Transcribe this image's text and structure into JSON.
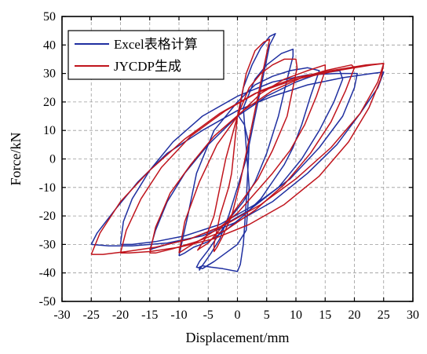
{
  "chart_data": {
    "type": "line",
    "title": "",
    "xlabel": "Displacement/mm",
    "ylabel": "Force/kN",
    "xlim": [
      -30,
      30
    ],
    "ylim": [
      -50,
      50
    ],
    "xticks": [
      -30,
      -25,
      -20,
      -15,
      -10,
      -5,
      0,
      5,
      10,
      15,
      20,
      25,
      30
    ],
    "yticks": [
      -50,
      -40,
      -30,
      -20,
      -10,
      0,
      10,
      20,
      30,
      40,
      50
    ],
    "grid": true,
    "legend_position": "top-left",
    "series": [
      {
        "name": "Excel表格计算",
        "color": "#1f2fa0",
        "loops": [
          {
            "x": [
              0.2,
              1,
              2.5,
              4,
              5.5,
              6.5,
              5.5,
              3.5,
              1.5,
              0,
              -1.5,
              -3,
              -4.5,
              -5.5,
              -6.2,
              -6.5,
              -6.5,
              -6,
              -4.5,
              -2.5,
              0,
              0.5,
              1,
              1.5,
              2,
              1.2,
              0.2
            ],
            "y": [
              15,
              25,
              33,
              39,
              43,
              44,
              40,
              20,
              0,
              -10,
              -20,
              -28,
              -33,
              -36,
              -38,
              -39,
              -38,
              -37.5,
              -38,
              -38.5,
              -39.5,
              -37,
              -30,
              -15,
              5,
              12,
              15
            ]
          },
          {
            "x": [
              1,
              3,
              5,
              7.5,
              9.5,
              9.5,
              8.5,
              7,
              5,
              3,
              1,
              -1,
              -3,
              -5,
              -6.5,
              -7,
              -6,
              -4,
              -2,
              0,
              1.5,
              2,
              1
            ],
            "y": [
              18,
              28,
              33,
              37,
              38.5,
              36,
              28,
              15,
              2,
              -8,
              -15,
              -20,
              -26,
              -32,
              -36,
              -38,
              -38.5,
              -36,
              -33,
              -30,
              -25,
              -10,
              18
            ]
          },
          {
            "x": [
              -10,
              -8.5,
              -7,
              -4,
              0,
              3,
              6,
              9,
              12,
              14,
              12.5,
              11,
              9.5,
              8,
              6,
              4,
              1,
              -2,
              -5,
              -7.5,
              -9,
              -10,
              -10
            ],
            "y": [
              -34,
              -20,
              -5,
              10,
              20,
              26,
              29,
              31,
              32,
              31,
              22,
              12,
              4,
              -2,
              -8,
              -14,
              -20,
              -25,
              -29,
              -31,
              -33,
              -34,
              -34
            ]
          },
          {
            "x": [
              -15,
              -14,
              -12,
              -9,
              -5,
              0,
              5,
              10,
              14,
              17.5,
              18,
              16.5,
              14,
              11,
              7,
              2,
              -3,
              -8,
              -12,
              -14.5,
              -15
            ],
            "y": [
              -32,
              -25,
              -15,
              -5,
              5,
              15,
              22,
              27,
              30,
              31,
              28,
              20,
              10,
              0,
              -10,
              -18,
              -24,
              -28,
              -30,
              -31.5,
              -32
            ]
          },
          {
            "x": [
              -20,
              -19.5,
              -18,
              -15,
              -11,
              -6,
              0,
              6,
              12,
              17,
              20.5,
              20,
              18,
              14,
              9,
              3,
              -3,
              -9,
              -14,
              -18,
              -20
            ],
            "y": [
              -30,
              -22,
              -14,
              -4,
              6,
              15,
              22,
              27,
              29.5,
              30,
              30,
              25,
              15,
              4,
              -7,
              -16,
              -23,
              -27,
              -29,
              -30,
              -30
            ]
          },
          {
            "x": [
              -25,
              -24,
              -21,
              -17,
              -12,
              -6,
              0,
              6,
              12,
              18,
              23,
              25,
              24,
              21,
              17,
              12,
              6,
              0,
              -6,
              -12,
              -18,
              -22,
              -25
            ],
            "y": [
              -30,
              -26,
              -18,
              -8,
              2,
              10,
              17,
              22,
              26,
              28.5,
              30,
              30.5,
              25,
              16,
              5,
              -5,
              -15,
              -22,
              -27,
              -29.5,
              -30.5,
              -30.5,
              -30
            ]
          }
        ]
      },
      {
        "name": "JYCDP生成",
        "color": "#c0141c",
        "loops": [
          {
            "x": [
              -1,
              0,
              1.5,
              3,
              4.5,
              5.5,
              4.5,
              2.5,
              0.5,
              -1,
              -2.5,
              -3.5,
              -4,
              -4,
              -3,
              -1.5,
              -1
            ],
            "y": [
              -5,
              15,
              30,
              38,
              41,
              42,
              32,
              12,
              -8,
              -20,
              -27,
              -31,
              -32.5,
              -30,
              -20,
              -10,
              -5
            ]
          },
          {
            "x": [
              -4,
              -2,
              0,
              2,
              4,
              6,
              8,
              10,
              10.2,
              8.5,
              6,
              3.5,
              1,
              -1.5,
              -3.5,
              -5,
              -6.5,
              -6.8,
              -5.5,
              -4
            ],
            "y": [
              -20,
              0,
              15,
              25,
              30,
              33,
              35,
              35,
              32,
              15,
              3,
              -7,
              -14,
              -21,
              -26,
              -29.5,
              -31.5,
              -32,
              -28,
              -20
            ]
          },
          {
            "x": [
              -10,
              -9,
              -6.5,
              -3.5,
              0,
              4,
              8,
              12,
              15,
              15,
              13.5,
              11.5,
              9,
              6,
              3,
              0,
              -3,
              -6,
              -8.5,
              -10,
              -10
            ],
            "y": [
              -33,
              -22,
              -8,
              5,
              15,
              23,
              28,
              31,
              33,
              31,
              22,
              12,
              3,
              -5,
              -12,
              -19,
              -24,
              -28,
              -31,
              -33,
              -33
            ]
          },
          {
            "x": [
              -15,
              -14,
              -11.5,
              -8,
              -4,
              1,
              6,
              11,
              15,
              19.5,
              20,
              18.5,
              16,
              12.5,
              8,
              3,
              -2,
              -7,
              -11,
              -14,
              -15
            ],
            "y": [
              -33,
              -24,
              -12,
              -2,
              8,
              17,
              24,
              28.5,
              31,
              33,
              32,
              24,
              13,
              2,
              -9,
              -18,
              -25,
              -29,
              -31.5,
              -33,
              -33
            ]
          },
          {
            "x": [
              -20,
              -19,
              -16.5,
              -13,
              -8,
              -2,
              4,
              10,
              16,
              22,
              25,
              24.5,
              22.5,
              19,
              14,
              8,
              2,
              -4,
              -10,
              -15,
              -18.5,
              -20
            ],
            "y": [
              -33,
              -25,
              -14,
              -3,
              8,
              17,
              24,
              28.5,
              31,
              33,
              33.5,
              28,
              18,
              6,
              -6,
              -16,
              -23,
              -28,
              -31,
              -32.5,
              -33,
              -33
            ]
          },
          {
            "x": [
              -25,
              -23.5,
              -20,
              -15,
              -9,
              -3,
              3,
              10,
              17,
              23,
              25,
              24,
              21,
              16,
              10,
              4,
              -2,
              -8,
              -14,
              -19,
              -23,
              -25
            ],
            "y": [
              -33.5,
              -26,
              -15,
              -4,
              7,
              16,
              23,
              28,
              31,
              33,
              33.5,
              27,
              16,
              4,
              -7,
              -16,
              -23,
              -28,
              -31,
              -32.5,
              -33.5,
              -33.5
            ]
          }
        ]
      }
    ]
  }
}
